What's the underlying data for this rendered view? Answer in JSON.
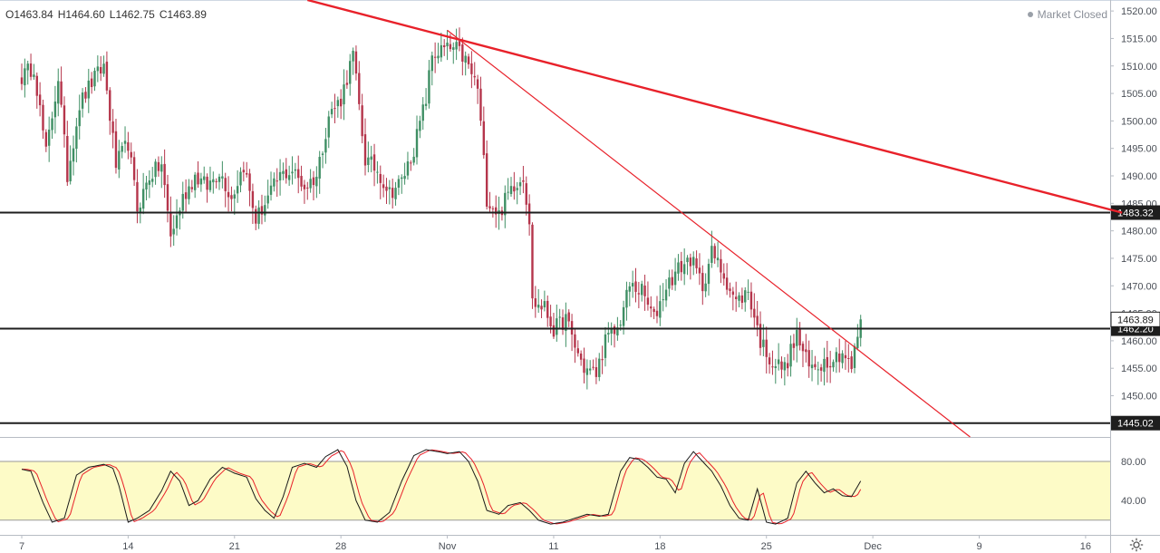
{
  "header": {
    "open": "O1463.84",
    "high": "H1464.60",
    "low": "L1462.75",
    "close": "C1463.89",
    "status": "Market Closed"
  },
  "colors": {
    "up": "#3f8f64",
    "down": "#b5354b",
    "trendline": "#e8212a",
    "level_line": "#1e1e1e",
    "osc_band": "#fdfbc7",
    "k_line": "#1a1a1a",
    "d_line": "#e8212a"
  },
  "icons": {
    "settings": "gear-icon"
  },
  "chart_data": [
    {
      "type": "candlestick",
      "price_axis": {
        "ylim": [
          1442.5,
          1522.0
        ],
        "ticks": [
          1450.0,
          1455.0,
          1460.0,
          1465.0,
          1470.0,
          1475.0,
          1480.0,
          1485.0,
          1490.0,
          1495.0,
          1500.0,
          1505.0,
          1510.0,
          1515.0,
          1520.0
        ],
        "tick_labels": [
          "1450.00",
          "1455.00",
          "1460.00",
          "1465.00",
          "1470.00",
          "1475.00",
          "1480.00",
          "1485.00",
          "1490.00",
          "1495.00",
          "1500.00",
          "1505.00",
          "1510.00",
          "1515.00",
          "1520.00"
        ]
      },
      "time_axis": {
        "labels": [
          "7",
          "14",
          "21",
          "28",
          "Nov",
          "11",
          "18",
          "25",
          "Dec",
          "9",
          "16"
        ],
        "label_index": [
          0,
          35,
          70,
          105,
          140,
          175,
          210,
          245,
          280,
          315,
          350
        ]
      },
      "horizontal_levels": [
        {
          "value": 1483.32,
          "label": "1483.32"
        },
        {
          "value": 1462.2,
          "label": "1462.20"
        },
        {
          "value": 1445.02,
          "label": "1445.02"
        }
      ],
      "last_price": {
        "value": 1463.89,
        "label": "1463.89"
      },
      "trendlines": [
        {
          "from": [
            94,
            1522.0
          ],
          "to": [
            362,
            1483.3
          ],
          "width": 2.4
        },
        {
          "from": [
            140,
            1516.5
          ],
          "to": [
            312,
            1442.5
          ],
          "width": 1.2
        }
      ],
      "waypoints": [
        [
          0,
          1508
        ],
        [
          4,
          1510
        ],
        [
          8,
          1494
        ],
        [
          12,
          1508
        ],
        [
          15,
          1490
        ],
        [
          19,
          1503
        ],
        [
          23,
          1507
        ],
        [
          27,
          1510
        ],
        [
          31,
          1492
        ],
        [
          35,
          1496
        ],
        [
          38,
          1484
        ],
        [
          42,
          1490
        ],
        [
          46,
          1492
        ],
        [
          49,
          1479
        ],
        [
          53,
          1486
        ],
        [
          57,
          1490
        ],
        [
          61,
          1488
        ],
        [
          65,
          1491
        ],
        [
          69,
          1486
        ],
        [
          73,
          1492
        ],
        [
          77,
          1482
        ],
        [
          81,
          1486
        ],
        [
          85,
          1490
        ],
        [
          89,
          1491
        ],
        [
          93,
          1488
        ],
        [
          97,
          1490
        ],
        [
          101,
          1501
        ],
        [
          105,
          1504
        ],
        [
          109,
          1512
        ],
        [
          113,
          1493
        ],
        [
          117,
          1491
        ],
        [
          121,
          1487
        ],
        [
          125,
          1489
        ],
        [
          129,
          1495
        ],
        [
          133,
          1504
        ],
        [
          135,
          1512
        ],
        [
          139,
          1513
        ],
        [
          143,
          1513
        ],
        [
          146,
          1511
        ],
        [
          150,
          1506
        ],
        [
          153,
          1486
        ],
        [
          157,
          1483
        ],
        [
          161,
          1488
        ],
        [
          165,
          1490
        ],
        [
          167,
          1482
        ],
        [
          168,
          1467
        ],
        [
          172,
          1466
        ],
        [
          175,
          1462
        ],
        [
          179,
          1464
        ],
        [
          182,
          1459
        ],
        [
          185,
          1455
        ],
        [
          189,
          1454
        ],
        [
          192,
          1460
        ],
        [
          196,
          1462
        ],
        [
          200,
          1470
        ],
        [
          204,
          1469
        ],
        [
          208,
          1464
        ],
        [
          212,
          1470
        ],
        [
          216,
          1473
        ],
        [
          220,
          1475
        ],
        [
          224,
          1470
        ],
        [
          227,
          1476
        ],
        [
          231,
          1472
        ],
        [
          235,
          1467
        ],
        [
          239,
          1469
        ],
        [
          243,
          1460
        ],
        [
          247,
          1456
        ],
        [
          251,
          1455
        ],
        [
          255,
          1461
        ],
        [
          259,
          1455
        ],
        [
          263,
          1456
        ],
        [
          267,
          1457
        ],
        [
          270,
          1458
        ],
        [
          273,
          1455
        ],
        [
          275,
          1461
        ],
        [
          276,
          1463.89
        ]
      ]
    },
    {
      "type": "line",
      "name": "stochastic",
      "ylim": [
        5,
        105
      ],
      "ticks": [
        40.0,
        80.0
      ],
      "tick_labels": [
        "40.00",
        "80.00"
      ],
      "band": [
        20,
        80
      ],
      "waypoints": [
        [
          0,
          72
        ],
        [
          3,
          70
        ],
        [
          7,
          38
        ],
        [
          10,
          18
        ],
        [
          14,
          22
        ],
        [
          18,
          66
        ],
        [
          22,
          74
        ],
        [
          27,
          77
        ],
        [
          30,
          73
        ],
        [
          32,
          55
        ],
        [
          35,
          18
        ],
        [
          38,
          22
        ],
        [
          42,
          30
        ],
        [
          46,
          50
        ],
        [
          49,
          70
        ],
        [
          52,
          60
        ],
        [
          55,
          35
        ],
        [
          58,
          40
        ],
        [
          62,
          62
        ],
        [
          66,
          74
        ],
        [
          70,
          68
        ],
        [
          74,
          64
        ],
        [
          77,
          42
        ],
        [
          80,
          30
        ],
        [
          83,
          22
        ],
        [
          86,
          44
        ],
        [
          89,
          74
        ],
        [
          93,
          78
        ],
        [
          97,
          74
        ],
        [
          100,
          85
        ],
        [
          104,
          92
        ],
        [
          107,
          75
        ],
        [
          110,
          40
        ],
        [
          113,
          20
        ],
        [
          117,
          18
        ],
        [
          121,
          28
        ],
        [
          125,
          60
        ],
        [
          129,
          86
        ],
        [
          133,
          92
        ],
        [
          137,
          90
        ],
        [
          140,
          88
        ],
        [
          144,
          90
        ],
        [
          147,
          80
        ],
        [
          150,
          60
        ],
        [
          153,
          30
        ],
        [
          157,
          26
        ],
        [
          160,
          35
        ],
        [
          164,
          38
        ],
        [
          167,
          30
        ],
        [
          170,
          20
        ],
        [
          174,
          16
        ],
        [
          178,
          18
        ],
        [
          182,
          22
        ],
        [
          186,
          26
        ],
        [
          190,
          24
        ],
        [
          193,
          26
        ],
        [
          197,
          70
        ],
        [
          200,
          84
        ],
        [
          203,
          82
        ],
        [
          206,
          74
        ],
        [
          209,
          64
        ],
        [
          212,
          62
        ],
        [
          215,
          48
        ],
        [
          218,
          78
        ],
        [
          221,
          90
        ],
        [
          224,
          80
        ],
        [
          227,
          70
        ],
        [
          230,
          55
        ],
        [
          233,
          35
        ],
        [
          236,
          22
        ],
        [
          239,
          20
        ],
        [
          242,
          52
        ],
        [
          245,
          18
        ],
        [
          248,
          16
        ],
        [
          252,
          22
        ],
        [
          255,
          58
        ],
        [
          258,
          70
        ],
        [
          261,
          58
        ],
        [
          264,
          48
        ],
        [
          267,
          52
        ],
        [
          270,
          45
        ],
        [
          273,
          44
        ],
        [
          276,
          60
        ]
      ],
      "d_lag": 1.6
    }
  ]
}
